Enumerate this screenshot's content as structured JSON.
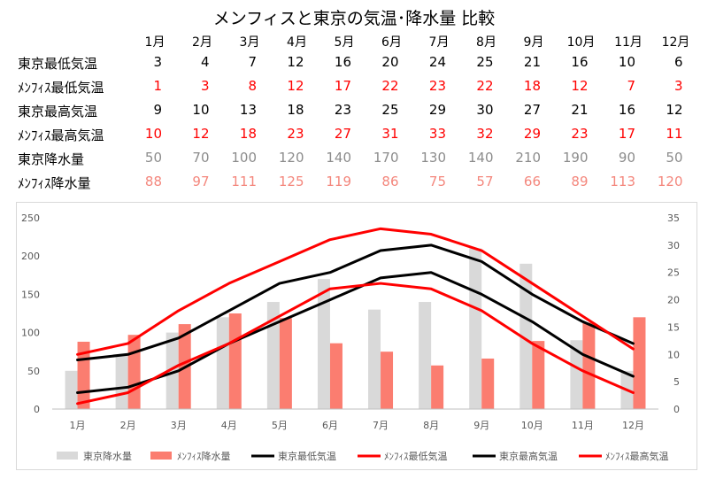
{
  "title": "メンフィスと東京の気温･降水量  比較",
  "table": {
    "months": [
      "1月",
      "2月",
      "3月",
      "4月",
      "5月",
      "6月",
      "7月",
      "8月",
      "9月",
      "10月",
      "11月",
      "12月"
    ],
    "rows": [
      {
        "label": "東京最低気温",
        "color": "#000000",
        "values": [
          3,
          4,
          7,
          12,
          16,
          20,
          24,
          25,
          21,
          16,
          10,
          6
        ]
      },
      {
        "label": "ﾒﾝﾌｨｽ最低気温",
        "color": "#ff0000",
        "values": [
          1,
          3,
          8,
          12,
          17,
          22,
          23,
          22,
          18,
          12,
          7,
          3
        ]
      },
      {
        "label": "東京最高気温",
        "color": "#000000",
        "values": [
          9,
          10,
          13,
          18,
          23,
          25,
          29,
          30,
          27,
          21,
          16,
          12
        ]
      },
      {
        "label": "ﾒﾝﾌｨｽ最高気温",
        "color": "#ff0000",
        "values": [
          10,
          12,
          18,
          23,
          27,
          31,
          33,
          32,
          29,
          23,
          17,
          11
        ]
      },
      {
        "label": "東京降水量",
        "color": "#8c8c8c",
        "values": [
          50,
          70,
          100,
          120,
          140,
          170,
          130,
          140,
          210,
          190,
          90,
          50
        ]
      },
      {
        "label": "ﾒﾝﾌｨｽ降水量",
        "color": "#f4877d",
        "values": [
          88,
          97,
          111,
          125,
          119,
          86,
          75,
          57,
          66,
          89,
          113,
          120
        ]
      }
    ]
  },
  "chart_data": {
    "type": "bar",
    "categories": [
      "1月",
      "2月",
      "3月",
      "4月",
      "5月",
      "6月",
      "7月",
      "8月",
      "9月",
      "10月",
      "11月",
      "12月"
    ],
    "y_left": {
      "min": 0,
      "max": 250,
      "ticks": [
        0,
        50,
        100,
        150,
        200,
        250
      ]
    },
    "y_right": {
      "min": 0,
      "max": 35,
      "ticks": [
        0,
        5,
        10,
        15,
        20,
        25,
        30,
        35
      ]
    },
    "grid": false,
    "legend": "bottom",
    "series": [
      {
        "name": "東京降水量",
        "type": "bar",
        "axis": "left",
        "color": "#d9d9d9",
        "values": [
          50,
          70,
          100,
          120,
          140,
          170,
          130,
          140,
          210,
          190,
          90,
          50
        ]
      },
      {
        "name": "ﾒﾝﾌｨｽ降水量",
        "type": "bar",
        "axis": "left",
        "color": "#fb7d70",
        "values": [
          88,
          97,
          111,
          125,
          119,
          86,
          75,
          57,
          66,
          89,
          113,
          120
        ]
      },
      {
        "name": "東京最低気温",
        "type": "line",
        "axis": "right",
        "color": "#000000",
        "values": [
          3,
          4,
          7,
          12,
          16,
          20,
          24,
          25,
          21,
          16,
          10,
          6
        ]
      },
      {
        "name": "ﾒﾝﾌｨｽ最低気温",
        "type": "line",
        "axis": "right",
        "color": "#ff0000",
        "values": [
          1,
          3,
          8,
          12,
          17,
          22,
          23,
          22,
          18,
          12,
          7,
          3
        ]
      },
      {
        "name": "東京最高気温",
        "type": "line",
        "axis": "right",
        "color": "#000000",
        "values": [
          9,
          10,
          13,
          18,
          23,
          25,
          29,
          30,
          27,
          21,
          16,
          12
        ]
      },
      {
        "name": "ﾒﾝﾌｨｽ最高気温",
        "type": "line",
        "axis": "right",
        "color": "#ff0000",
        "values": [
          10,
          12,
          18,
          23,
          27,
          31,
          33,
          32,
          29,
          23,
          17,
          11
        ]
      }
    ]
  }
}
